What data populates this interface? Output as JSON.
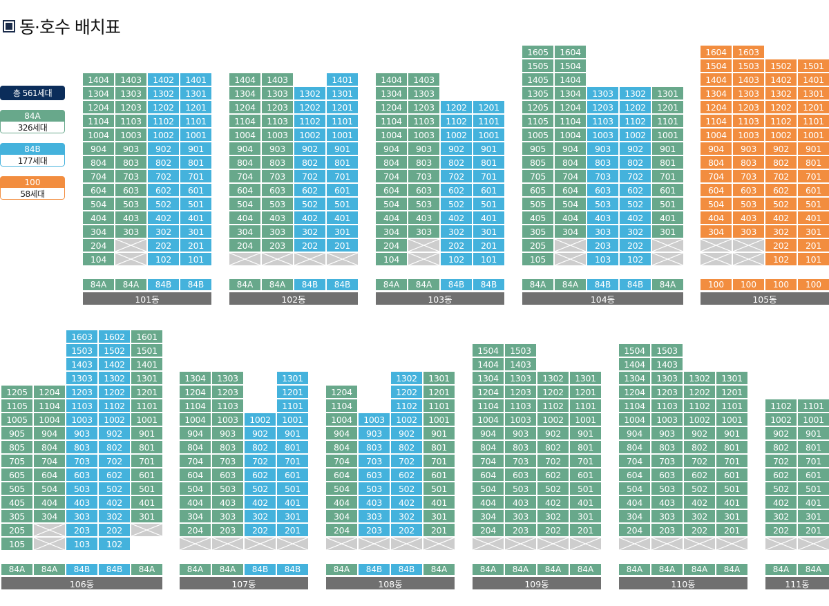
{
  "title": "동·호수 배치표",
  "legend": {
    "total": "총 561세대",
    "items": [
      {
        "type": "84A",
        "count": "326세대",
        "class": "a"
      },
      {
        "type": "84B",
        "count": "177세대",
        "class": "b"
      },
      {
        "type": "100",
        "count": "58세대",
        "class": "c"
      }
    ]
  },
  "colors": {
    "84A": "#68a88b",
    "84B": "#44b2dc",
    "100": "#f28d3f",
    "empty": "#cdcdcd",
    "label_bar": "#707070",
    "total_badge": "#0b2d5a"
  },
  "buildings": [
    {
      "name": "101동",
      "types": [
        "84A",
        "84A",
        "84B",
        "84B"
      ],
      "floors": [
        [
          "1404:A",
          "1403:A",
          "1402:B",
          "1401:B"
        ],
        [
          "1304:A",
          "1303:A",
          "1302:B",
          "1301:B"
        ],
        [
          "1204:A",
          "1203:A",
          "1202:B",
          "1201:B"
        ],
        [
          "1104:A",
          "1103:A",
          "1102:B",
          "1101:B"
        ],
        [
          "1004:A",
          "1003:A",
          "1002:B",
          "1001:B"
        ],
        [
          "904:A",
          "903:A",
          "902:B",
          "901:B"
        ],
        [
          "804:A",
          "803:A",
          "802:B",
          "801:B"
        ],
        [
          "704:A",
          "703:A",
          "702:B",
          "701:B"
        ],
        [
          "604:A",
          "603:A",
          "602:B",
          "601:B"
        ],
        [
          "504:A",
          "503:A",
          "502:B",
          "501:B"
        ],
        [
          "404:A",
          "403:A",
          "402:B",
          "401:B"
        ],
        [
          "304:A",
          "303:A",
          "302:B",
          "301:B"
        ],
        [
          "204:A",
          ":X",
          "202:B",
          "201:B"
        ],
        [
          "104:A",
          ":X",
          "102:B",
          "101:B"
        ]
      ]
    },
    {
      "name": "102동",
      "types": [
        "84A",
        "84A",
        "84B",
        "84B"
      ],
      "floors": [
        [
          "1404:A",
          "1403:A",
          "",
          "1401:B"
        ],
        [
          "1304:A",
          "1303:A",
          "1302:B",
          "1301:B"
        ],
        [
          "1204:A",
          "1203:A",
          "1202:B",
          "1201:B"
        ],
        [
          "1104:A",
          "1103:A",
          "1102:B",
          "1101:B"
        ],
        [
          "1004:A",
          "1003:A",
          "1002:B",
          "1001:B"
        ],
        [
          "904:A",
          "903:A",
          "902:B",
          "901:B"
        ],
        [
          "804:A",
          "803:A",
          "802:B",
          "801:B"
        ],
        [
          "704:A",
          "703:A",
          "702:B",
          "701:B"
        ],
        [
          "604:A",
          "603:A",
          "602:B",
          "601:B"
        ],
        [
          "504:A",
          "503:A",
          "502:B",
          "501:B"
        ],
        [
          "404:A",
          "403:A",
          "402:B",
          "401:B"
        ],
        [
          "304:A",
          "303:A",
          "302:B",
          "301:B"
        ],
        [
          "204:A",
          "203:A",
          "202:B",
          "201:B"
        ],
        [
          ":X",
          ":X",
          ":X",
          ":X"
        ]
      ]
    },
    {
      "name": "103동",
      "types": [
        "84A",
        "84A",
        "84B",
        "84B"
      ],
      "floors": [
        [
          "1404:A",
          "1403:A",
          "",
          ""
        ],
        [
          "1304:A",
          "1303:A",
          "",
          ""
        ],
        [
          "1204:A",
          "1203:A",
          "1202:B",
          "1201:B"
        ],
        [
          "1104:A",
          "1103:A",
          "1102:B",
          "1101:B"
        ],
        [
          "1004:A",
          "1003:A",
          "1002:B",
          "1001:B"
        ],
        [
          "904:A",
          "903:A",
          "902:B",
          "901:B"
        ],
        [
          "804:A",
          "803:A",
          "802:B",
          "801:B"
        ],
        [
          "704:A",
          "703:A",
          "702:B",
          "701:B"
        ],
        [
          "604:A",
          "603:A",
          "602:B",
          "601:B"
        ],
        [
          "504:A",
          "503:A",
          "502:B",
          "501:B"
        ],
        [
          "404:A",
          "403:A",
          "402:B",
          "401:B"
        ],
        [
          "304:A",
          "303:A",
          "302:B",
          "301:B"
        ],
        [
          "204:A",
          ":X",
          "202:B",
          "201:B"
        ],
        [
          "104:A",
          ":X",
          "102:B",
          "101:B"
        ]
      ]
    },
    {
      "name": "104동",
      "types": [
        "84A",
        "84A",
        "84B",
        "84B",
        "84A"
      ],
      "floors": [
        [
          "1605:A",
          "1604:A",
          "",
          "",
          ""
        ],
        [
          "1505:A",
          "1504:A",
          "",
          "",
          ""
        ],
        [
          "1405:A",
          "1404:A",
          "",
          "",
          ""
        ],
        [
          "1305:A",
          "1304:A",
          "1303:B",
          "1302:B",
          "1301:A"
        ],
        [
          "1205:A",
          "1204:A",
          "1203:B",
          "1202:B",
          "1201:A"
        ],
        [
          "1105:A",
          "1104:A",
          "1103:B",
          "1102:B",
          "1101:A"
        ],
        [
          "1005:A",
          "1004:A",
          "1003:B",
          "1002:B",
          "1001:A"
        ],
        [
          "905:A",
          "904:A",
          "903:B",
          "902:B",
          "901:A"
        ],
        [
          "805:A",
          "804:A",
          "803:B",
          "802:B",
          "801:A"
        ],
        [
          "705:A",
          "704:A",
          "703:B",
          "702:B",
          "701:A"
        ],
        [
          "605:A",
          "604:A",
          "603:B",
          "602:B",
          "601:A"
        ],
        [
          "505:A",
          "504:A",
          "503:B",
          "502:B",
          "501:A"
        ],
        [
          "405:A",
          "404:A",
          "403:B",
          "402:B",
          "401:A"
        ],
        [
          "305:A",
          "304:A",
          "303:B",
          "302:B",
          "301:A"
        ],
        [
          "205:A",
          ":X",
          "203:B",
          "202:B",
          ":X"
        ],
        [
          "105:A",
          ":X",
          "103:B",
          "102:B",
          ":X"
        ]
      ]
    },
    {
      "name": "105동",
      "types": [
        "100",
        "100",
        "100",
        "100"
      ],
      "floors": [
        [
          "1604:C",
          "1603:C",
          "",
          ""
        ],
        [
          "1504:C",
          "1503:C",
          "1502:C",
          "1501:C"
        ],
        [
          "1404:C",
          "1403:C",
          "1402:C",
          "1401:C"
        ],
        [
          "1304:C",
          "1303:C",
          "1302:C",
          "1301:C"
        ],
        [
          "1204:C",
          "1203:C",
          "1202:C",
          "1201:C"
        ],
        [
          "1104:C",
          "1103:C",
          "1102:C",
          "1101:C"
        ],
        [
          "1004:C",
          "1003:C",
          "1002:C",
          "1001:C"
        ],
        [
          "904:C",
          "903:C",
          "902:C",
          "901:C"
        ],
        [
          "804:C",
          "803:C",
          "802:C",
          "801:C"
        ],
        [
          "704:C",
          "703:C",
          "702:C",
          "701:C"
        ],
        [
          "604:C",
          "603:C",
          "602:C",
          "601:C"
        ],
        [
          "504:C",
          "503:C",
          "502:C",
          "501:C"
        ],
        [
          "404:C",
          "403:C",
          "402:C",
          "401:C"
        ],
        [
          "304:C",
          "303:C",
          "302:C",
          "301:C"
        ],
        [
          ":X",
          ":X",
          "202:C",
          "201:C"
        ],
        [
          ":X",
          ":X",
          "102:C",
          "101:C"
        ]
      ]
    },
    {
      "name": "106동",
      "types": [
        "84A",
        "84A",
        "84B",
        "84B",
        "84A"
      ],
      "floors": [
        [
          "",
          "",
          "1603:B",
          "1602:B",
          "1601:A"
        ],
        [
          "",
          "",
          "1503:B",
          "1502:B",
          "1501:A"
        ],
        [
          "",
          "",
          "1403:B",
          "1402:B",
          "1401:A"
        ],
        [
          "",
          "",
          "1303:B",
          "1302:B",
          "1301:A"
        ],
        [
          "1205:A",
          "1204:A",
          "1203:B",
          "1202:B",
          "1201:A"
        ],
        [
          "1105:A",
          "1104:A",
          "1103:B",
          "1102:B",
          "1101:A"
        ],
        [
          "1005:A",
          "1004:A",
          "1003:B",
          "1002:B",
          "1001:A"
        ],
        [
          "905:A",
          "904:A",
          "903:B",
          "902:B",
          "901:A"
        ],
        [
          "805:A",
          "804:A",
          "803:B",
          "802:B",
          "801:A"
        ],
        [
          "705:A",
          "704:A",
          "703:B",
          "702:B",
          "701:A"
        ],
        [
          "605:A",
          "604:A",
          "603:B",
          "602:B",
          "601:A"
        ],
        [
          "505:A",
          "504:A",
          "503:B",
          "502:B",
          "501:A"
        ],
        [
          "405:A",
          "404:A",
          "403:B",
          "402:B",
          "401:A"
        ],
        [
          "305:A",
          "304:A",
          "303:B",
          "302:B",
          "301:A"
        ],
        [
          "205:A",
          ":X",
          "203:B",
          "202:B",
          ":X"
        ],
        [
          "105:A",
          ":X",
          "103:B",
          "102:B",
          ""
        ]
      ]
    },
    {
      "name": "107동",
      "types": [
        "84A",
        "84A",
        "84B",
        "84B"
      ],
      "floors": [
        [
          "1304:A",
          "1303:A",
          "",
          "1301:B"
        ],
        [
          "1204:A",
          "1203:A",
          "",
          "1201:B"
        ],
        [
          "1104:A",
          "1103:A",
          "",
          "1101:B"
        ],
        [
          "1004:A",
          "1003:A",
          "1002:B",
          "1001:B"
        ],
        [
          "904:A",
          "903:A",
          "902:B",
          "901:B"
        ],
        [
          "804:A",
          "803:A",
          "802:B",
          "801:B"
        ],
        [
          "704:A",
          "703:A",
          "702:B",
          "701:B"
        ],
        [
          "604:A",
          "603:A",
          "602:B",
          "601:B"
        ],
        [
          "504:A",
          "503:A",
          "502:B",
          "501:B"
        ],
        [
          "404:A",
          "403:A",
          "402:B",
          "401:B"
        ],
        [
          "304:A",
          "303:A",
          "302:B",
          "301:B"
        ],
        [
          "204:A",
          "203:A",
          "202:B",
          "201:B"
        ],
        [
          ":X",
          ":X",
          ":X",
          ":X"
        ]
      ]
    },
    {
      "name": "108동",
      "types": [
        "84A",
        "84B",
        "84B",
        "84A"
      ],
      "floors": [
        [
          "",
          "",
          "1302:B",
          "1301:A"
        ],
        [
          "1204:A",
          "",
          "1202:B",
          "1201:A"
        ],
        [
          "1104:A",
          "",
          "1102:B",
          "1101:A"
        ],
        [
          "1004:A",
          "1003:B",
          "1002:B",
          "1001:A"
        ],
        [
          "904:A",
          "903:B",
          "902:B",
          "901:A"
        ],
        [
          "804:A",
          "803:B",
          "802:B",
          "801:A"
        ],
        [
          "704:A",
          "703:B",
          "702:B",
          "701:A"
        ],
        [
          "604:A",
          "603:B",
          "602:B",
          "601:A"
        ],
        [
          "504:A",
          "503:B",
          "502:B",
          "501:A"
        ],
        [
          "404:A",
          "403:B",
          "402:B",
          "401:A"
        ],
        [
          "304:A",
          "303:B",
          "302:B",
          "301:A"
        ],
        [
          "204:A",
          "203:B",
          "202:B",
          "201:A"
        ],
        [
          ":X",
          ":X",
          ":X",
          ":X"
        ]
      ]
    },
    {
      "name": "109동",
      "types": [
        "84A",
        "84A",
        "84A",
        "84A"
      ],
      "floors": [
        [
          "1504:A",
          "1503:A",
          "",
          ""
        ],
        [
          "1404:A",
          "1403:A",
          "",
          ""
        ],
        [
          "1304:A",
          "1303:A",
          "1302:A",
          "1301:A"
        ],
        [
          "1204:A",
          "1203:A",
          "1202:A",
          "1201:A"
        ],
        [
          "1104:A",
          "1103:A",
          "1102:A",
          "1101:A"
        ],
        [
          "1004:A",
          "1003:A",
          "1002:A",
          "1001:A"
        ],
        [
          "904:A",
          "903:A",
          "902:A",
          "901:A"
        ],
        [
          "804:A",
          "803:A",
          "802:A",
          "801:A"
        ],
        [
          "704:A",
          "703:A",
          "702:A",
          "701:A"
        ],
        [
          "604:A",
          "603:A",
          "602:A",
          "601:A"
        ],
        [
          "504:A",
          "503:A",
          "502:A",
          "501:A"
        ],
        [
          "404:A",
          "403:A",
          "402:A",
          "401:A"
        ],
        [
          "304:A",
          "303:A",
          "302:A",
          "301:A"
        ],
        [
          "204:A",
          "203:A",
          "202:A",
          "201:A"
        ],
        [
          ":X",
          ":X",
          ":X",
          ":X"
        ]
      ]
    },
    {
      "name": "110동",
      "types": [
        "84A",
        "84A",
        "84A",
        "84A"
      ],
      "floors": [
        [
          "1504:A",
          "1503:A",
          "",
          ""
        ],
        [
          "1404:A",
          "1403:A",
          "",
          ""
        ],
        [
          "1304:A",
          "1303:A",
          "1302:A",
          "1301:A"
        ],
        [
          "1204:A",
          "1203:A",
          "1202:A",
          "1201:A"
        ],
        [
          "1104:A",
          "1103:A",
          "1102:A",
          "1101:A"
        ],
        [
          "1004:A",
          "1003:A",
          "1002:A",
          "1001:A"
        ],
        [
          "904:A",
          "903:A",
          "902:A",
          "901:A"
        ],
        [
          "804:A",
          "803:A",
          "802:A",
          "801:A"
        ],
        [
          "704:A",
          "703:A",
          "702:A",
          "701:A"
        ],
        [
          "604:A",
          "603:A",
          "602:A",
          "601:A"
        ],
        [
          "504:A",
          "503:A",
          "502:A",
          "501:A"
        ],
        [
          "404:A",
          "403:A",
          "402:A",
          "401:A"
        ],
        [
          "304:A",
          "303:A",
          "302:A",
          "301:A"
        ],
        [
          "204:A",
          "203:A",
          "202:A",
          "201:A"
        ],
        [
          ":X",
          ":X",
          ":X",
          ":X"
        ]
      ]
    },
    {
      "name": "111동",
      "types": [
        "84A",
        "84A"
      ],
      "floors": [
        [
          "1102:A",
          "1101:A"
        ],
        [
          "1002:A",
          "1001:A"
        ],
        [
          "902:A",
          "901:A"
        ],
        [
          "802:A",
          "801:A"
        ],
        [
          "702:A",
          "701:A"
        ],
        [
          "602:A",
          "601:A"
        ],
        [
          "502:A",
          "501:A"
        ],
        [
          "402:A",
          "401:A"
        ],
        [
          "302:A",
          "301:A"
        ],
        [
          "202:A",
          "201:A"
        ],
        [
          ":X",
          ":X"
        ]
      ]
    }
  ]
}
